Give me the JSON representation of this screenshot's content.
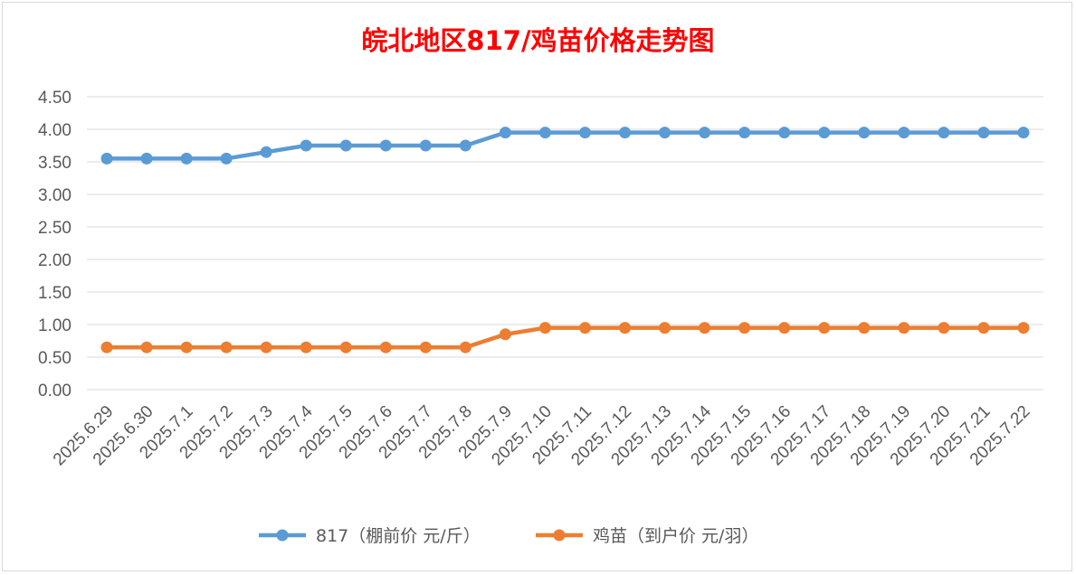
{
  "chart_data": {
    "type": "line",
    "title": "皖北地区817/鸡苗价格走势图",
    "title_color": "#ff0000",
    "xlabel": "",
    "ylabel": "",
    "ylim": [
      0,
      4.5
    ],
    "yticks": [
      "0.00",
      "0.50",
      "1.00",
      "1.50",
      "2.00",
      "2.50",
      "3.00",
      "3.50",
      "4.00",
      "4.50"
    ],
    "grid": true,
    "legend_position": "bottom",
    "categories": [
      "2025.6.29",
      "2025.6.30",
      "2025.7.1",
      "2025.7.2",
      "2025.7.3",
      "2025.7.4",
      "2025.7.5",
      "2025.7.6",
      "2025.7.7",
      "2025.7.8",
      "2025.7.9",
      "2025.7.10",
      "2025.7.11",
      "2025.7.12",
      "2025.7.13",
      "2025.7.14",
      "2025.7.15",
      "2025.7.16",
      "2025.7.17",
      "2025.7.18",
      "2025.7.19",
      "2025.7.20",
      "2025.7.21",
      "2025.7.22"
    ],
    "series": [
      {
        "name": "817（棚前价 元/斤）",
        "color": "#5b9bd5",
        "values": [
          3.55,
          3.55,
          3.55,
          3.55,
          3.65,
          3.75,
          3.75,
          3.75,
          3.75,
          3.75,
          3.95,
          3.95,
          3.95,
          3.95,
          3.95,
          3.95,
          3.95,
          3.95,
          3.95,
          3.95,
          3.95,
          3.95,
          3.95,
          3.95
        ]
      },
      {
        "name": "鸡苗（到户价 元/羽）",
        "color": "#ed7d31",
        "values": [
          0.65,
          0.65,
          0.65,
          0.65,
          0.65,
          0.65,
          0.65,
          0.65,
          0.65,
          0.65,
          0.85,
          0.95,
          0.95,
          0.95,
          0.95,
          0.95,
          0.95,
          0.95,
          0.95,
          0.95,
          0.95,
          0.95,
          0.95,
          0.95
        ]
      }
    ]
  }
}
